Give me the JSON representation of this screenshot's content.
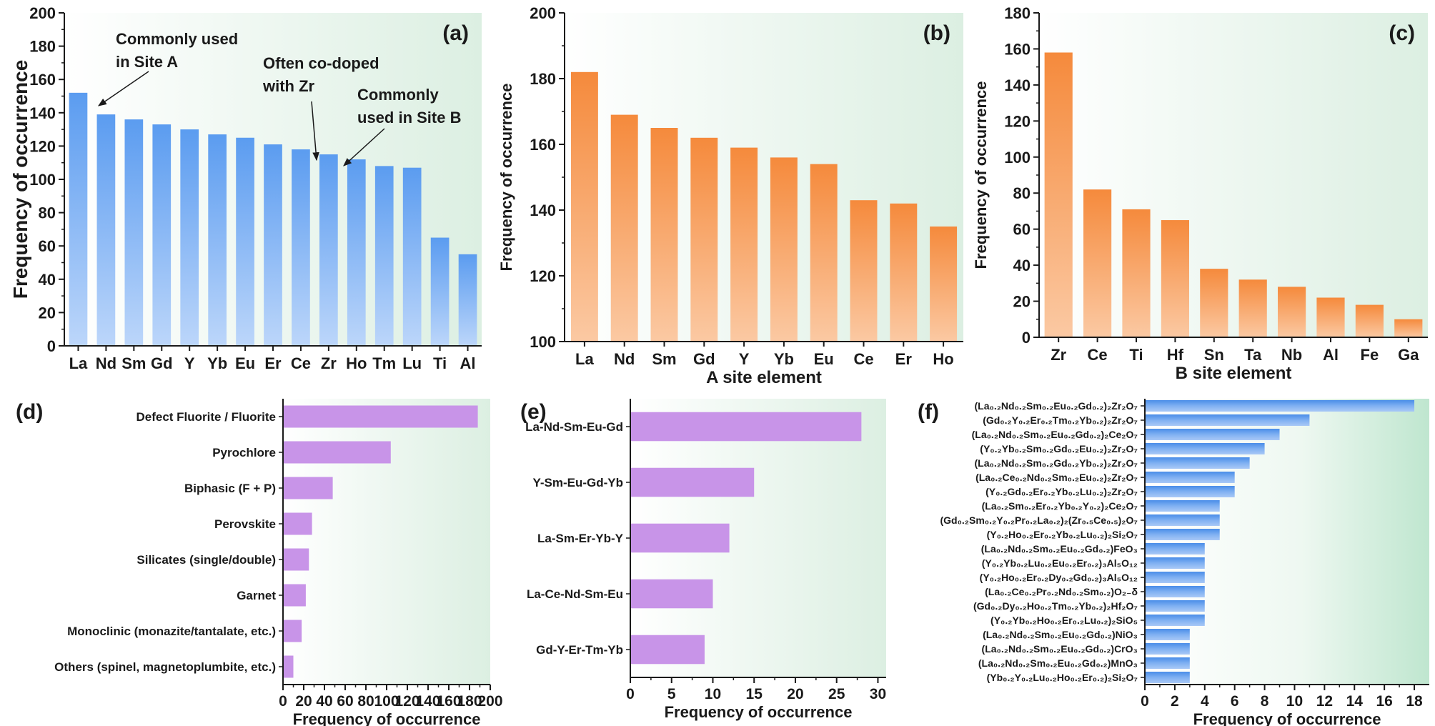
{
  "colors": {
    "blue_top": "#5b9cf0",
    "blue_bottom": "#bcd6fa",
    "orange_top": "#f58a3c",
    "orange_bottom": "#fbc9a3",
    "violet": "#c894e8",
    "plot_bg_light": "#ffffff",
    "plot_bg_green": "#dcefe2",
    "plot_bg_green_strong": "#bfe6cf"
  },
  "chart_data": [
    {
      "id": "a",
      "panel_label": "(a)",
      "type": "bar",
      "orientation": "vertical",
      "categories": [
        "La",
        "Nd",
        "Sm",
        "Gd",
        "Y",
        "Yb",
        "Eu",
        "Er",
        "Ce",
        "Zr",
        "Ho",
        "Tm",
        "Lu",
        "Ti",
        "Al"
      ],
      "values": [
        152,
        139,
        136,
        133,
        130,
        127,
        125,
        121,
        118,
        115,
        112,
        108,
        107,
        65,
        55
      ],
      "xlabel": "",
      "ylabel": "Frequency of occurrence",
      "ylim": [
        0,
        200
      ],
      "yticks": [
        0,
        20,
        40,
        60,
        80,
        100,
        120,
        140,
        160,
        180,
        200
      ],
      "annotations": [
        {
          "lines": [
            "Commonly used",
            "in Site A"
          ],
          "target": "La"
        },
        {
          "lines": [
            "Often co-doped",
            "with Zr"
          ],
          "target": "Ce"
        },
        {
          "lines": [
            "Commonly",
            "used in Site B"
          ],
          "target": "Zr"
        }
      ]
    },
    {
      "id": "b",
      "panel_label": "(b)",
      "type": "bar",
      "orientation": "vertical",
      "categories": [
        "La",
        "Nd",
        "Sm",
        "Gd",
        "Y",
        "Yb",
        "Eu",
        "Ce",
        "Er",
        "Ho"
      ],
      "values": [
        182,
        169,
        165,
        162,
        159,
        156,
        154,
        143,
        142,
        135
      ],
      "xlabel": "A site element",
      "ylabel": "Frequency of occurrence",
      "ylim": [
        100,
        200
      ],
      "yticks": [
        100,
        120,
        140,
        160,
        180,
        200
      ]
    },
    {
      "id": "c",
      "panel_label": "(c)",
      "type": "bar",
      "orientation": "vertical",
      "categories": [
        "Zr",
        "Ce",
        "Ti",
        "Hf",
        "Sn",
        "Ta",
        "Nb",
        "Al",
        "Fe",
        "Ga"
      ],
      "values": [
        158,
        82,
        71,
        65,
        38,
        32,
        28,
        22,
        18,
        10
      ],
      "xlabel": "B site element",
      "ylabel": "Frequency of occurrence",
      "ylim": [
        0,
        180
      ],
      "yticks": [
        0,
        20,
        40,
        60,
        80,
        100,
        120,
        140,
        160,
        180
      ]
    },
    {
      "id": "d",
      "panel_label": "(d)",
      "type": "bar",
      "orientation": "horizontal",
      "categories": [
        "Defect Fluorite / Fluorite",
        "Pyrochlore",
        "Biphasic (F + P)",
        "Perovskite",
        "Silicates (single/double)",
        "Garnet",
        "Monoclinic (monazite/tantalate, etc.)",
        "Others (spinel, magnetoplumbite, etc.)"
      ],
      "values": [
        188,
        104,
        48,
        28,
        25,
        22,
        18,
        10
      ],
      "xlabel": "Frequency of occurrence",
      "ylabel": "",
      "xlim": [
        0,
        200
      ],
      "xticks": [
        0,
        20,
        40,
        60,
        80,
        100,
        120,
        140,
        160,
        180,
        200
      ]
    },
    {
      "id": "e",
      "panel_label": "(e)",
      "type": "bar",
      "orientation": "horizontal",
      "categories": [
        "La-Nd-Sm-Eu-Gd",
        "Y-Sm-Eu-Gd-Yb",
        "La-Sm-Er-Yb-Y",
        "La-Ce-Nd-Sm-Eu",
        "Gd-Y-Er-Tm-Yb"
      ],
      "values": [
        28,
        15,
        12,
        10,
        9
      ],
      "xlabel": "Frequency of occurrence",
      "ylabel": "",
      "xlim": [
        0,
        31
      ],
      "xticks": [
        0,
        5,
        10,
        15,
        20,
        25,
        30
      ]
    },
    {
      "id": "f",
      "panel_label": "(f)",
      "type": "bar",
      "orientation": "horizontal",
      "categories": [
        "(La₀.₂Nd₀.₂Sm₀.₂Eu₀.₂Gd₀.₂)₂Zr₂O₇",
        "(Gd₀.₂Y₀.₂Er₀.₂Tm₀.₂Yb₀.₂)₂Zr₂O₇",
        "(La₀.₂Nd₀.₂Sm₀.₂Eu₀.₂Gd₀.₂)₂Ce₂O₇",
        "(Y₀.₂Yb₀.₂Sm₀.₂Gd₀.₂Eu₀.₂)₂Zr₂O₇",
        "(La₀.₂Nd₀.₂Sm₀.₂Gd₀.₂Yb₀.₂)₂Zr₂O₇",
        "(La₀.₂Ce₀.₂Nd₀.₂Sm₀.₂Eu₀.₂)₂Zr₂O₇",
        "(Y₀.₂Gd₀.₂Er₀.₂Yb₀.₂Lu₀.₂)₂Zr₂O₇",
        "(La₀.₂Sm₀.₂Er₀.₂Yb₀.₂Y₀.₂)₂Ce₂O₇",
        "(Gd₀.₂Sm₀.₂Y₀.₂Pr₀.₂La₀.₂)₂(Zr₀.₅Ce₀.₅)₂O₇",
        "(Y₀.₂Ho₀.₂Er₀.₂Yb₀.₂Lu₀.₂)₂Si₂O₇",
        "(La₀.₂Nd₀.₂Sm₀.₂Eu₀.₂Gd₀.₂)FeO₃",
        "(Y₀.₂Yb₀.₂Lu₀.₂Eu₀.₂Er₀.₂)₃Al₅O₁₂",
        "(Y₀.₂Ho₀.₂Er₀.₂Dy₀.₂Gd₀.₂)₃Al₅O₁₂",
        "(La₀.₂Ce₀.₂Pr₀.₂Nd₀.₂Sm₀.₂)O₂₋δ",
        "(Gd₀.₂Dy₀.₂Ho₀.₂Tm₀.₂Yb₀.₂)₂Hf₂O₇",
        "(Y₀.₂Yb₀.₂Ho₀.₂Er₀.₂Lu₀.₂)₂SiO₅",
        "(La₀.₂Nd₀.₂Sm₀.₂Eu₀.₂Gd₀.₂)NiO₃",
        "(La₀.₂Nd₀.₂Sm₀.₂Eu₀.₂Gd₀.₂)CrO₃",
        "(La₀.₂Nd₀.₂Sm₀.₂Eu₀.₂Gd₀.₂)MnO₃",
        "(Yb₀.₂Y₀.₂Lu₀.₂Ho₀.₂Er₀.₂)₂Si₂O₇"
      ],
      "values": [
        18,
        11,
        9,
        8,
        7,
        6,
        6,
        5,
        5,
        5,
        4,
        4,
        4,
        4,
        4,
        4,
        3,
        3,
        3,
        3
      ],
      "xlabel": "Frequency of occurrence",
      "ylabel": "",
      "xlim": [
        0,
        19
      ],
      "xticks": [
        0,
        2,
        4,
        6,
        8,
        10,
        12,
        14,
        16,
        18
      ]
    }
  ]
}
